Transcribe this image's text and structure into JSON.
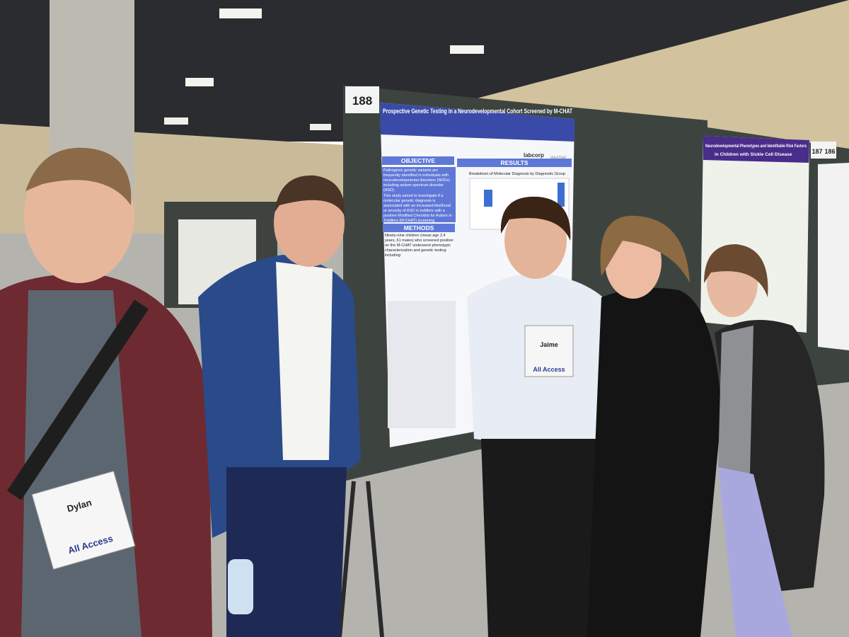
{
  "scene": {
    "poster_main": {
      "number": "188",
      "title": "Prospective Genetic Testing in a Neurodevelopmental Cohort Screened by M-CHAT",
      "sections": [
        "OBJECTIVE",
        "RESULTS",
        "METHODS"
      ],
      "objective_points": [
        "Pathogenic genetic variants are frequently identified in individuals with neurodevelopmental disorders (NDDs) including autism spectrum disorder (ASD)",
        "This study aimed to investigate if a molecular genetic diagnosis is associated with an increased likelihood or severity of ASD in toddlers with a positive Modified Checklist for Autism in Toddlers (M-CHAT) screening"
      ],
      "methods_text": "Ninety-nine children (mean age 2.4 years, 61 males) who screened positive on the M-CHAT underwent phenotypic characterization and genetic testing including:",
      "chart_title": "Breakdown of Molecular Diagnosis by Diagnostic Group",
      "logos": [
        "labcorp",
        "INVITAE"
      ]
    },
    "poster_right": {
      "numbers": [
        "187",
        "186"
      ],
      "title_lines": [
        "Neurodevelopmental Phenotypes and Identifiable Risk Factors",
        "in Children with Sickle Cell Disease"
      ]
    },
    "badges": [
      {
        "name": "Dylan",
        "access": "All Access"
      },
      {
        "name": "Jaime",
        "access": "All Access"
      }
    ]
  }
}
